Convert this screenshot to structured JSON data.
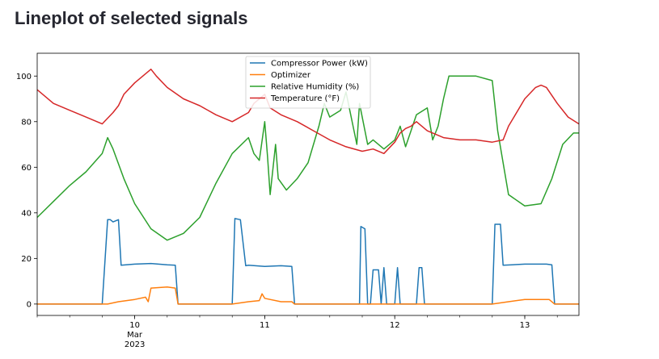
{
  "page": {
    "title": "Lineplot of selected signals"
  },
  "chart_data": {
    "type": "line",
    "xlabel": "",
    "ylabel": "",
    "xlim": [
      "2023-03-09T06:00",
      "2023-03-13T10:00"
    ],
    "ylim": [
      -5,
      110
    ],
    "yticks": [
      0,
      20,
      40,
      60,
      80,
      100
    ],
    "xticks": [
      {
        "at": "2023-03-10T00:00",
        "lines": [
          "10",
          "Mar",
          "2023"
        ]
      },
      {
        "at": "2023-03-11T00:00",
        "lines": [
          "11"
        ]
      },
      {
        "at": "2023-03-12T00:00",
        "lines": [
          "12"
        ]
      },
      {
        "at": "2023-03-13T00:00",
        "lines": [
          "13"
        ]
      }
    ],
    "grid": false,
    "legend_position": "top-center",
    "series": [
      {
        "name": "Compressor Power (kW)",
        "color": "#1f77b4",
        "x": [
          "2023-03-09T06:00",
          "2023-03-09T18:00",
          "2023-03-09T19:00",
          "2023-03-09T19:30",
          "2023-03-09T20:00",
          "2023-03-09T21:00",
          "2023-03-09T21:30",
          "2023-03-10T00:00",
          "2023-03-10T03:00",
          "2023-03-10T06:00",
          "2023-03-10T07:30",
          "2023-03-10T08:00",
          "2023-03-10T18:00",
          "2023-03-10T18:30",
          "2023-03-10T19:30",
          "2023-03-10T20:30",
          "2023-03-10T21:00",
          "2023-03-11T00:00",
          "2023-03-11T03:00",
          "2023-03-11T05:00",
          "2023-03-11T05:30",
          "2023-03-11T17:30",
          "2023-03-11T17:45",
          "2023-03-11T18:30",
          "2023-03-11T19:00",
          "2023-03-11T19:30",
          "2023-03-11T20:00",
          "2023-03-11T21:00",
          "2023-03-11T21:30",
          "2023-03-11T22:00",
          "2023-03-11T22:30",
          "2023-03-12T00:00",
          "2023-03-12T00:30",
          "2023-03-12T01:00",
          "2023-03-12T04:00",
          "2023-03-12T04:30",
          "2023-03-12T05:00",
          "2023-03-12T05:30",
          "2023-03-12T18:00",
          "2023-03-12T18:30",
          "2023-03-12T19:30",
          "2023-03-12T20:00",
          "2023-03-13T00:00",
          "2023-03-13T04:00",
          "2023-03-13T05:00",
          "2023-03-13T05:30",
          "2023-03-13T10:00"
        ],
        "y": [
          0,
          0,
          37,
          37,
          36,
          37,
          17,
          17.5,
          17.8,
          17.2,
          17,
          0,
          0,
          37.5,
          37,
          16.8,
          17,
          16.5,
          16.8,
          16.5,
          0,
          0,
          34,
          33,
          0,
          0,
          15,
          15,
          0,
          16,
          0,
          0,
          16,
          0,
          0,
          16,
          16,
          0,
          0,
          35,
          35,
          17,
          17.5,
          17.5,
          17.2,
          0,
          0
        ]
      },
      {
        "name": "Optimizer",
        "color": "#ff7f0e",
        "x": [
          "2023-03-09T06:00",
          "2023-03-09T19:00",
          "2023-03-09T21:00",
          "2023-03-10T00:00",
          "2023-03-10T02:00",
          "2023-03-10T02:30",
          "2023-03-10T03:00",
          "2023-03-10T06:00",
          "2023-03-10T07:30",
          "2023-03-10T08:00",
          "2023-03-10T18:00",
          "2023-03-10T21:00",
          "2023-03-10T23:00",
          "2023-03-10T23:30",
          "2023-03-11T00:00",
          "2023-03-11T03:00",
          "2023-03-11T05:00",
          "2023-03-11T05:30",
          "2023-03-12T18:00",
          "2023-03-12T21:00",
          "2023-03-13T00:00",
          "2023-03-13T03:00",
          "2023-03-13T04:30",
          "2023-03-13T05:30",
          "2023-03-13T10:00"
        ],
        "y": [
          0,
          0,
          1,
          2,
          3,
          1,
          7,
          7.5,
          7,
          0,
          0,
          1,
          1.5,
          4.5,
          2.5,
          1,
          1,
          0,
          0,
          1,
          2,
          2,
          2,
          0,
          0
        ]
      },
      {
        "name": "Relative Humidity (%)",
        "color": "#2ca02c",
        "x": [
          "2023-03-09T06:00",
          "2023-03-09T09:00",
          "2023-03-09T12:00",
          "2023-03-09T15:00",
          "2023-03-09T18:00",
          "2023-03-09T19:00",
          "2023-03-09T20:00",
          "2023-03-09T22:00",
          "2023-03-10T00:00",
          "2023-03-10T03:00",
          "2023-03-10T06:00",
          "2023-03-10T09:00",
          "2023-03-10T12:00",
          "2023-03-10T15:00",
          "2023-03-10T18:00",
          "2023-03-10T21:00",
          "2023-03-10T22:00",
          "2023-03-10T23:00",
          "2023-03-11T00:00",
          "2023-03-11T00:30",
          "2023-03-11T01:00",
          "2023-03-11T02:00",
          "2023-03-11T02:30",
          "2023-03-11T04:00",
          "2023-03-11T06:00",
          "2023-03-11T08:00",
          "2023-03-11T10:00",
          "2023-03-11T11:00",
          "2023-03-11T12:00",
          "2023-03-11T14:00",
          "2023-03-11T15:00",
          "2023-03-11T17:00",
          "2023-03-11T17:30",
          "2023-03-11T19:00",
          "2023-03-11T20:00",
          "2023-03-11T22:00",
          "2023-03-12T00:00",
          "2023-03-12T01:00",
          "2023-03-12T02:00",
          "2023-03-12T04:00",
          "2023-03-12T06:00",
          "2023-03-12T07:00",
          "2023-03-12T08:00",
          "2023-03-12T09:00",
          "2023-03-12T10:00",
          "2023-03-12T14:00",
          "2023-03-12T15:00",
          "2023-03-12T18:00",
          "2023-03-12T19:00",
          "2023-03-12T20:00",
          "2023-03-12T21:00",
          "2023-03-13T00:00",
          "2023-03-13T03:00",
          "2023-03-13T05:00",
          "2023-03-13T07:00",
          "2023-03-13T09:00",
          "2023-03-13T10:00"
        ],
        "y": [
          38,
          45,
          52,
          58,
          66,
          73,
          68,
          55,
          44,
          33,
          28,
          31,
          38,
          53,
          66,
          73,
          66,
          63,
          80,
          65,
          48,
          70,
          55,
          50,
          55,
          62,
          78,
          88,
          82,
          85,
          93,
          70,
          88,
          70,
          72,
          68,
          72,
          78,
          69,
          83,
          86,
          72,
          78,
          90,
          100,
          100,
          100,
          98,
          76,
          62,
          48,
          43,
          44,
          55,
          70,
          75,
          75
        ]
      },
      {
        "name": "Temperature (°F)",
        "color": "#d62728",
        "x": [
          "2023-03-09T06:00",
          "2023-03-09T09:00",
          "2023-03-09T12:00",
          "2023-03-09T15:00",
          "2023-03-09T18:00",
          "2023-03-09T20:00",
          "2023-03-09T21:00",
          "2023-03-09T22:00",
          "2023-03-10T00:00",
          "2023-03-10T02:00",
          "2023-03-10T03:00",
          "2023-03-10T04:00",
          "2023-03-10T06:00",
          "2023-03-10T09:00",
          "2023-03-10T12:00",
          "2023-03-10T15:00",
          "2023-03-10T18:00",
          "2023-03-10T21:00",
          "2023-03-10T22:00",
          "2023-03-11T00:00",
          "2023-03-11T01:00",
          "2023-03-11T03:00",
          "2023-03-11T06:00",
          "2023-03-11T09:00",
          "2023-03-11T12:00",
          "2023-03-11T15:00",
          "2023-03-11T18:00",
          "2023-03-11T20:00",
          "2023-03-11T22:00",
          "2023-03-12T00:00",
          "2023-03-12T01:00",
          "2023-03-12T02:00",
          "2023-03-12T03:00",
          "2023-03-12T04:00",
          "2023-03-12T06:00",
          "2023-03-12T09:00",
          "2023-03-12T12:00",
          "2023-03-12T15:00",
          "2023-03-12T18:00",
          "2023-03-12T20:00",
          "2023-03-12T21:00",
          "2023-03-12T22:00",
          "2023-03-13T00:00",
          "2023-03-13T02:00",
          "2023-03-13T03:00",
          "2023-03-13T04:00",
          "2023-03-13T06:00",
          "2023-03-13T08:00",
          "2023-03-13T10:00"
        ],
        "y": [
          94,
          88,
          85,
          82,
          79,
          84,
          87,
          92,
          97,
          101,
          103,
          100,
          95,
          90,
          87,
          83,
          80,
          84,
          88,
          92,
          86,
          83,
          80,
          76,
          72,
          69,
          67,
          68,
          66,
          71,
          75,
          77,
          78,
          80,
          76,
          73,
          72,
          72,
          71,
          72,
          78,
          82,
          90,
          95,
          96,
          95,
          88,
          82,
          79
        ]
      }
    ]
  }
}
